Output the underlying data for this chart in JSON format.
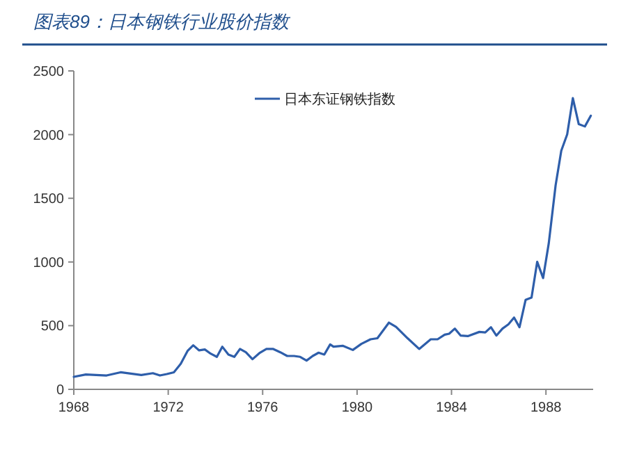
{
  "chart_data": {
    "type": "line",
    "title": "图表89：日本钢铁行业股价指数",
    "xlim": [
      1968,
      1990
    ],
    "xticks": [
      1968,
      1972,
      1976,
      1980,
      1984,
      1988
    ],
    "ylim": [
      0,
      2500
    ],
    "yticks": [
      0,
      500,
      1000,
      1500,
      2000,
      2500
    ],
    "grid": false,
    "legend": "top",
    "marker": "none",
    "line_style": "solid",
    "series": [
      {
        "name": "日本东证钢铁指数",
        "color": "#2e5eaa",
        "x": [
          1968.0,
          1968.51,
          1969.39,
          1969.98,
          1970.86,
          1971.35,
          1971.65,
          1971.94,
          1972.24,
          1972.53,
          1972.82,
          1973.06,
          1973.31,
          1973.55,
          1973.8,
          1974.06,
          1974.29,
          1974.55,
          1974.8,
          1975.04,
          1975.29,
          1975.57,
          1975.86,
          1976.16,
          1976.45,
          1976.75,
          1977.04,
          1977.33,
          1977.59,
          1977.86,
          1978.12,
          1978.37,
          1978.61,
          1978.86,
          1979.0,
          1979.39,
          1979.82,
          1980.18,
          1980.57,
          1980.86,
          1981.35,
          1981.65,
          1982.14,
          1982.63,
          1983.12,
          1983.41,
          1983.71,
          1983.9,
          1984.14,
          1984.39,
          1984.69,
          1985.18,
          1985.43,
          1985.67,
          1985.9,
          1986.16,
          1986.41,
          1986.65,
          1986.88,
          1987.14,
          1987.39,
          1987.63,
          1987.88,
          1988.12,
          1988.41,
          1988.65,
          1988.9,
          1989.14,
          1989.39,
          1989.65,
          1989.9
        ],
        "values": [
          98,
          117,
          109,
          134,
          113,
          127,
          109,
          120,
          134,
          200,
          302,
          346,
          306,
          313,
          280,
          255,
          335,
          273,
          255,
          317,
          291,
          237,
          284,
          317,
          317,
          291,
          262,
          262,
          255,
          226,
          262,
          288,
          273,
          353,
          335,
          342,
          309,
          357,
          393,
          401,
          524,
          491,
          401,
          317,
          393,
          393,
          429,
          437,
          477,
          422,
          418,
          451,
          447,
          488,
          422,
          477,
          510,
          564,
          488,
          703,
          721,
          1001,
          874,
          1147,
          1602,
          1874,
          2002,
          2286,
          2082,
          2064,
          2148
        ]
      }
    ]
  }
}
